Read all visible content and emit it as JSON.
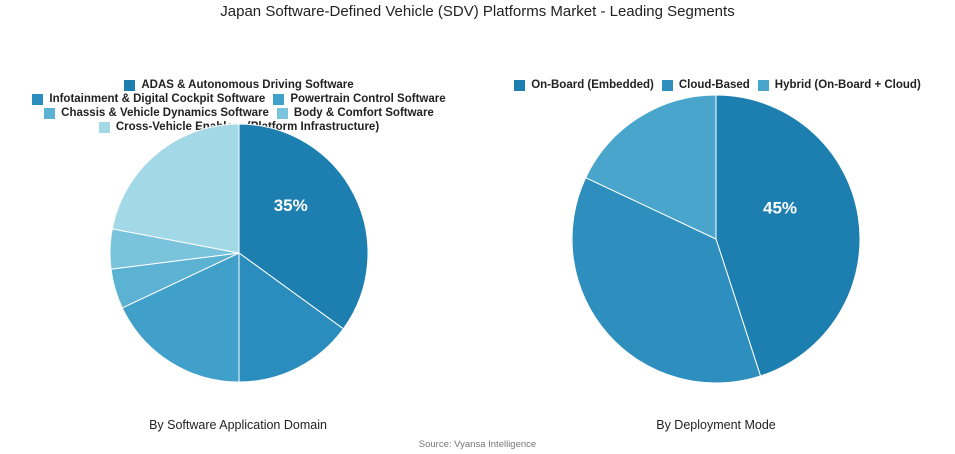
{
  "title": "Japan Software-Defined Vehicle (SDV) Platforms Market - Leading Segments",
  "source": "Source: Vyansa Intelligence",
  "chart_data": [
    {
      "type": "pie",
      "caption": "By Software Application Domain",
      "categories": [
        "ADAS & Autonomous Driving Software",
        "Infotainment & Digital Cockpit Software",
        "Powertrain Control Software",
        "Chassis & Vehicle Dynamics Software",
        "Body & Comfort Software",
        "Cross-Vehicle Enablers (Platform Infrastructure)"
      ],
      "values": [
        35,
        15,
        18,
        5,
        5,
        22
      ],
      "colors": [
        "#1c7fb0",
        "#2b8dbd",
        "#41a0c9",
        "#5cb2d3",
        "#79c3dc",
        "#a3d8e6"
      ],
      "data_labels": [
        "35%",
        "",
        "",
        "",
        "",
        ""
      ]
    },
    {
      "type": "pie",
      "caption": "By Deployment Mode",
      "categories": [
        "On-Board (Embedded)",
        "Cloud-Based",
        "Hybrid (On-Board + Cloud)"
      ],
      "values": [
        45,
        37,
        18
      ],
      "colors": [
        "#1c7fb0",
        "#2e8fbe",
        "#49a5cc"
      ],
      "data_labels": [
        "45%",
        "",
        ""
      ]
    }
  ]
}
